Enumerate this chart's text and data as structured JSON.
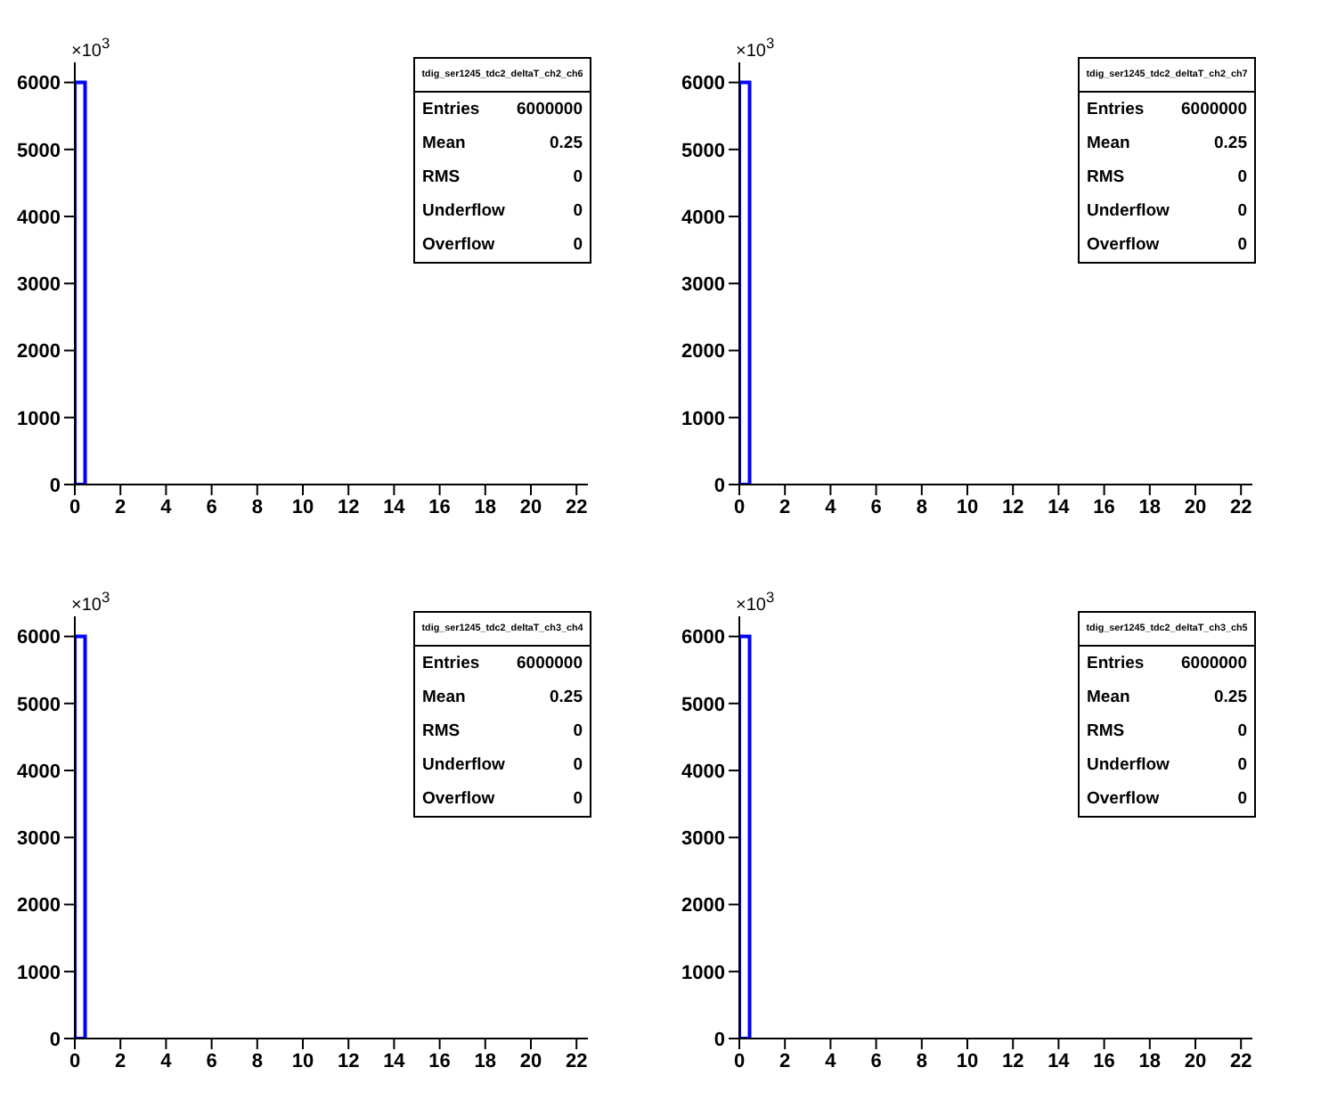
{
  "chart_data": [
    {
      "type": "histogram",
      "title": "tdig_ser1245_tdc2_deltaT_ch2_ch6",
      "ylabel": "×10$^{3}$",
      "color": "#0000ff",
      "bins": [
        0,
        0.5,
        1,
        1.5,
        2,
        2.5,
        3,
        3.5,
        4,
        4.5,
        5,
        5.5,
        6,
        6.5,
        7,
        7.5,
        8,
        8.5,
        9,
        9.5,
        10,
        10.5,
        11,
        11.5,
        12,
        12.5,
        13,
        13.5,
        14,
        14.5,
        15,
        15.5,
        16,
        16.5,
        17,
        17.5,
        18,
        18.5,
        19,
        19.5,
        20,
        20.5,
        21,
        21.5,
        22,
        22.5
      ],
      "values": [
        6000,
        0,
        0,
        0,
        0,
        0,
        0,
        0,
        0,
        0,
        0,
        0,
        0,
        0,
        0,
        0,
        0,
        0,
        0,
        0,
        0,
        0,
        0,
        0,
        0,
        0,
        0,
        0,
        0,
        0,
        0,
        0,
        0,
        0,
        0,
        0,
        0,
        0,
        0,
        0,
        0,
        0,
        0,
        0,
        0
      ],
      "xlim": [
        0,
        22.5
      ],
      "xticks": [
        0,
        2,
        4,
        6,
        8,
        10,
        12,
        14,
        16,
        18,
        20,
        22
      ],
      "ylim": [
        0,
        6300
      ],
      "yticks": [
        0,
        1000,
        2000,
        3000,
        4000,
        5000,
        6000
      ],
      "annotations": [
        "Entries",
        "6000000",
        "Mean",
        "0.25",
        "RMS",
        "0",
        "Underflow",
        "0",
        "Overflow",
        "0"
      ]
    },
    {
      "type": "histogram",
      "title": "tdig_ser1245_tdc2_deltaT_ch2_ch7",
      "ylabel": "×10$^{3}$",
      "color": "#0000ff",
      "bins": [
        0,
        0.5,
        1,
        1.5,
        2,
        2.5,
        3,
        3.5,
        4,
        4.5,
        5,
        5.5,
        6,
        6.5,
        7,
        7.5,
        8,
        8.5,
        9,
        9.5,
        10,
        10.5,
        11,
        11.5,
        12,
        12.5,
        13,
        13.5,
        14,
        14.5,
        15,
        15.5,
        16,
        16.5,
        17,
        17.5,
        18,
        18.5,
        19,
        19.5,
        20,
        20.5,
        21,
        21.5,
        22,
        22.5
      ],
      "values": [
        6000,
        0,
        0,
        0,
        0,
        0,
        0,
        0,
        0,
        0,
        0,
        0,
        0,
        0,
        0,
        0,
        0,
        0,
        0,
        0,
        0,
        0,
        0,
        0,
        0,
        0,
        0,
        0,
        0,
        0,
        0,
        0,
        0,
        0,
        0,
        0,
        0,
        0,
        0,
        0,
        0,
        0,
        0,
        0,
        0
      ],
      "xlim": [
        0,
        22.5
      ],
      "xticks": [
        0,
        2,
        4,
        6,
        8,
        10,
        12,
        14,
        16,
        18,
        20,
        22
      ],
      "ylim": [
        0,
        6300
      ],
      "yticks": [
        0,
        1000,
        2000,
        3000,
        4000,
        5000,
        6000
      ],
      "annotations": [
        "Entries",
        "6000000",
        "Mean",
        "0.25",
        "RMS",
        "0",
        "Underflow",
        "0",
        "Overflow",
        "0"
      ]
    },
    {
      "type": "histogram",
      "title": "tdig_ser1245_tdc2_deltaT_ch3_ch4",
      "ylabel": "×10$^{3}$",
      "color": "#0000ff",
      "bins": [
        0,
        0.5,
        1,
        1.5,
        2,
        2.5,
        3,
        3.5,
        4,
        4.5,
        5,
        5.5,
        6,
        6.5,
        7,
        7.5,
        8,
        8.5,
        9,
        9.5,
        10,
        10.5,
        11,
        11.5,
        12,
        12.5,
        13,
        13.5,
        14,
        14.5,
        15,
        15.5,
        16,
        16.5,
        17,
        17.5,
        18,
        18.5,
        19,
        19.5,
        20,
        20.5,
        21,
        21.5,
        22,
        22.5
      ],
      "values": [
        6000,
        0,
        0,
        0,
        0,
        0,
        0,
        0,
        0,
        0,
        0,
        0,
        0,
        0,
        0,
        0,
        0,
        0,
        0,
        0,
        0,
        0,
        0,
        0,
        0,
        0,
        0,
        0,
        0,
        0,
        0,
        0,
        0,
        0,
        0,
        0,
        0,
        0,
        0,
        0,
        0,
        0,
        0,
        0,
        0
      ],
      "xlim": [
        0,
        22.5
      ],
      "xticks": [
        0,
        2,
        4,
        6,
        8,
        10,
        12,
        14,
        16,
        18,
        20,
        22
      ],
      "ylim": [
        0,
        6300
      ],
      "yticks": [
        0,
        1000,
        2000,
        3000,
        4000,
        5000,
        6000
      ],
      "annotations": [
        "Entries",
        "6000000",
        "Mean",
        "0.25",
        "RMS",
        "0",
        "Underflow",
        "0",
        "Overflow",
        "0"
      ]
    },
    {
      "type": "histogram",
      "title": "tdig_ser1245_tdc2_deltaT_ch3_ch5",
      "ylabel": "×10$^{3}$",
      "color": "#0000ff",
      "bins": [
        0,
        0.5,
        1,
        1.5,
        2,
        2.5,
        3,
        3.5,
        4,
        4.5,
        5,
        5.5,
        6,
        6.5,
        7,
        7.5,
        8,
        8.5,
        9,
        9.5,
        10,
        10.5,
        11,
        11.5,
        12,
        12.5,
        13,
        13.5,
        14,
        14.5,
        15,
        15.5,
        16,
        16.5,
        17,
        17.5,
        18,
        18.5,
        19,
        19.5,
        20,
        20.5,
        21,
        21.5,
        22,
        22.5
      ],
      "values": [
        6000,
        0,
        0,
        0,
        0,
        0,
        0,
        0,
        0,
        0,
        0,
        0,
        0,
        0,
        0,
        0,
        0,
        0,
        0,
        0,
        0,
        0,
        0,
        0,
        0,
        0,
        0,
        0,
        0,
        0,
        0,
        0,
        0,
        0,
        0,
        0,
        0,
        0,
        0,
        0,
        0,
        0,
        0,
        0,
        0
      ],
      "xlim": [
        0,
        22.5
      ],
      "xticks": [
        0,
        2,
        4,
        6,
        8,
        10,
        12,
        14,
        16,
        18,
        20,
        22
      ],
      "ylim": [
        0,
        6300
      ],
      "yticks": [
        0,
        1000,
        2000,
        3000,
        4000,
        5000,
        6000
      ],
      "annotations": [
        "Entries",
        "6000000",
        "Mean",
        "0.25",
        "RMS",
        "0",
        "Underflow",
        "0",
        "Overflow",
        "0"
      ]
    }
  ]
}
